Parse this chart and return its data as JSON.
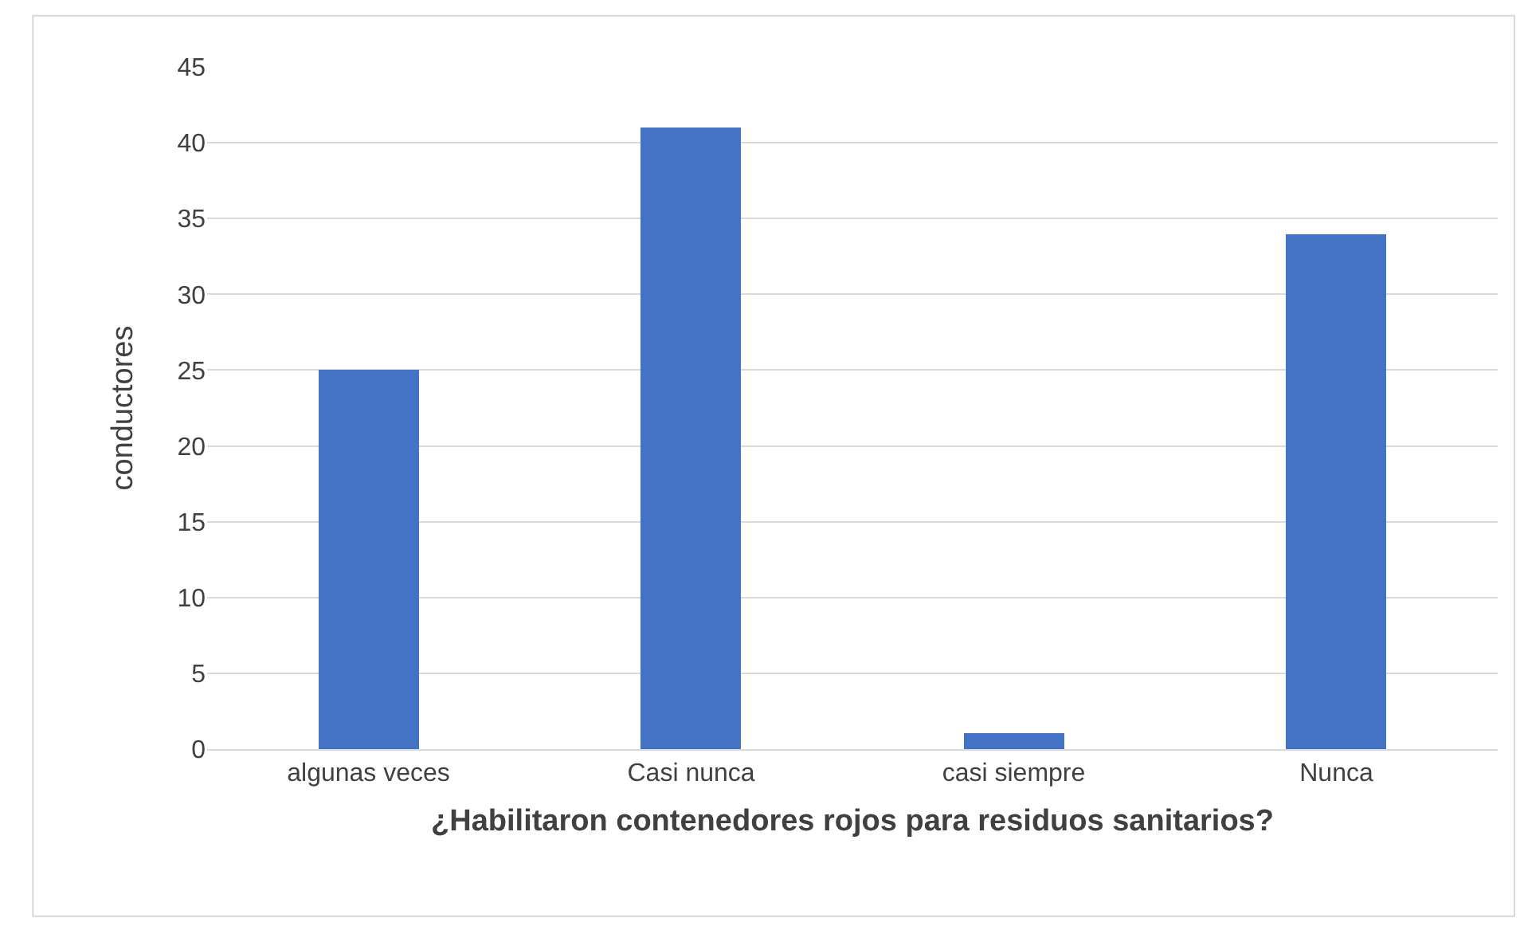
{
  "chart_data": {
    "type": "bar",
    "xlabel": "¿Habilitaron contenedores rojos para residuos sanitarios?",
    "ylabel": "conductores",
    "categories": [
      "algunas veces",
      "Casi nunca",
      "casi siempre",
      "Nunca"
    ],
    "values": [
      25,
      41,
      1,
      34
    ],
    "color": "#4472c4",
    "ylim": [
      0,
      45
    ],
    "yticks": [
      0,
      5,
      10,
      15,
      20,
      25,
      30,
      35,
      40,
      45
    ],
    "grid": "y"
  }
}
